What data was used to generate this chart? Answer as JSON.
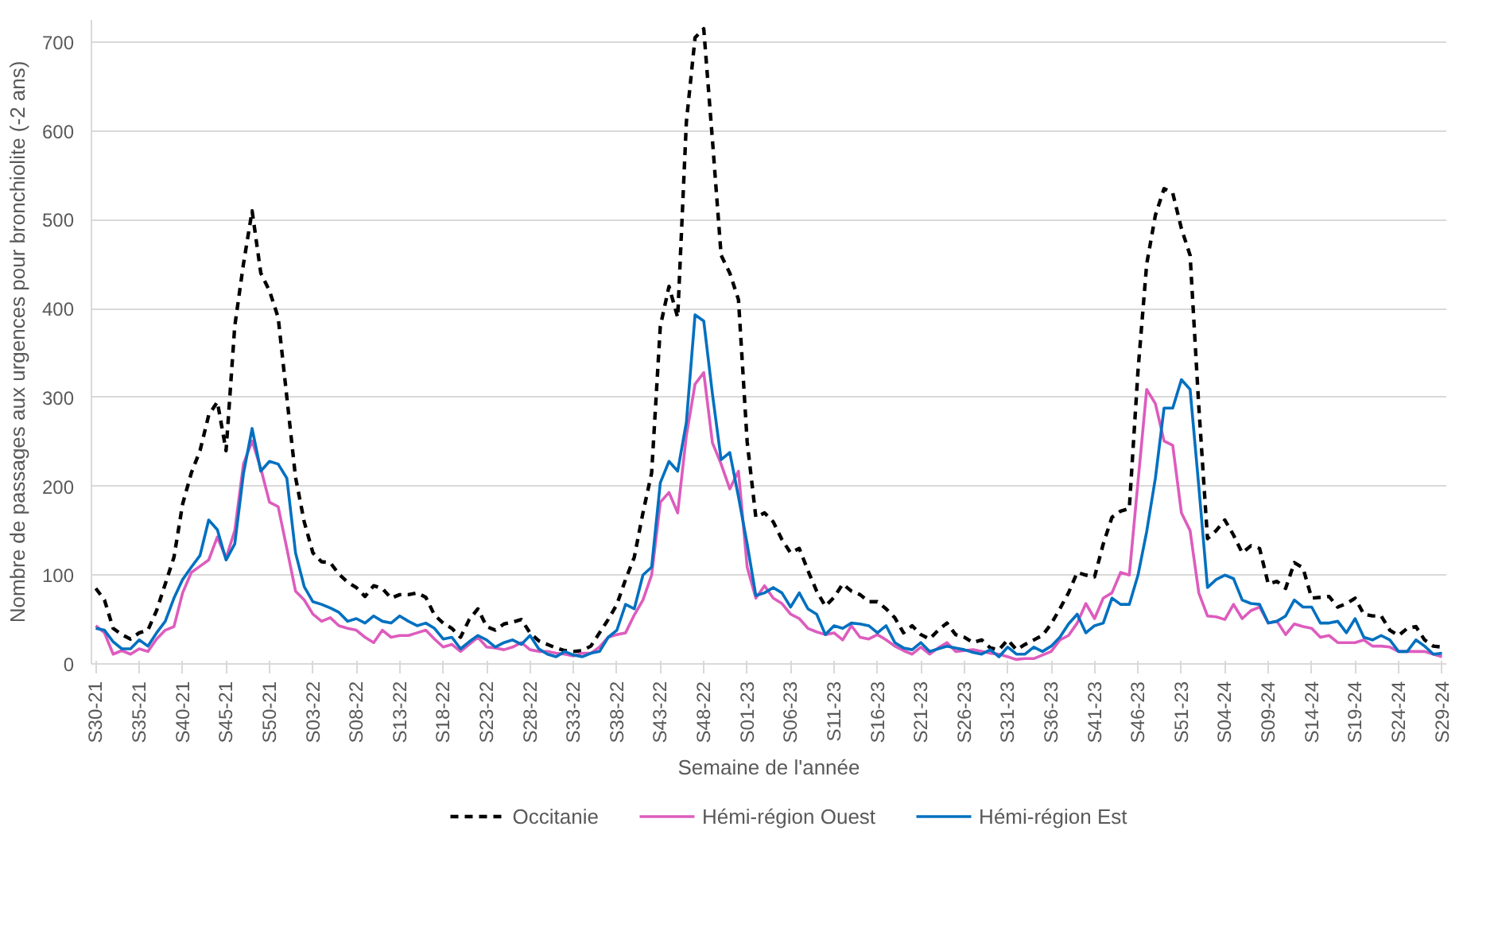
{
  "chart_data": {
    "type": "line",
    "xlabel": "Semaine de l'année",
    "ylabel": "Nombre de passages aux urgences pour bronchiolite (-2 ans)",
    "categories": [
      "S30-21",
      null,
      null,
      null,
      null,
      "S35-21",
      null,
      null,
      null,
      null,
      "S40-21",
      null,
      null,
      null,
      null,
      "S45-21",
      null,
      null,
      null,
      null,
      "S50-21",
      null,
      null,
      null,
      null,
      "S03-22",
      null,
      null,
      null,
      null,
      "S08-22",
      null,
      null,
      null,
      null,
      "S13-22",
      null,
      null,
      null,
      null,
      "S18-22",
      null,
      null,
      null,
      null,
      "S23-22",
      null,
      null,
      null,
      null,
      "S28-22",
      null,
      null,
      null,
      null,
      "S33-22",
      null,
      null,
      null,
      null,
      "S38-22",
      null,
      null,
      null,
      null,
      "S43-22",
      null,
      null,
      null,
      null,
      "S48-22",
      null,
      null,
      null,
      null,
      "S01-23",
      null,
      null,
      null,
      null,
      "S06-23",
      null,
      null,
      null,
      null,
      "S11-23",
      null,
      null,
      null,
      null,
      "S16-23",
      null,
      null,
      null,
      null,
      "S21-23",
      null,
      null,
      null,
      null,
      "S26-23",
      null,
      null,
      null,
      null,
      "S31-23",
      null,
      null,
      null,
      null,
      "S36-23",
      null,
      null,
      null,
      null,
      "S41-23",
      null,
      null,
      null,
      null,
      "S46-23",
      null,
      null,
      null,
      null,
      "S51-23",
      null,
      null,
      null,
      null,
      "S04-24",
      null,
      null,
      null,
      null,
      "S09-24",
      null,
      null,
      null,
      null,
      "S14-24",
      null,
      null,
      null,
      null,
      "S19-24",
      null,
      null,
      null,
      null,
      "S24-24",
      null,
      null,
      null,
      null,
      "S29-24"
    ],
    "series": [
      {
        "name": "Occitanie",
        "color": "#000000",
        "line_style": "dashed",
        "values": [
          85,
          72,
          40,
          33,
          28,
          35,
          38,
          60,
          90,
          120,
          180,
          215,
          240,
          280,
          295,
          240,
          380,
          450,
          510,
          440,
          420,
          390,
          300,
          210,
          160,
          125,
          115,
          114,
          101,
          92,
          86,
          76,
          88,
          85,
          74,
          78,
          78,
          80,
          75,
          55,
          46,
          40,
          30,
          50,
          62,
          42,
          38,
          45,
          47,
          50,
          35,
          26,
          22,
          18,
          15,
          14,
          15,
          20,
          35,
          50,
          67,
          95,
          120,
          170,
          215,
          380,
          425,
          390,
          610,
          705,
          715,
          590,
          460,
          440,
          410,
          250,
          165,
          170,
          160,
          140,
          125,
          130,
          105,
          82,
          65,
          75,
          90,
          82,
          78,
          70,
          70,
          62,
          52,
          35,
          43,
          33,
          28,
          38,
          46,
          33,
          30,
          24,
          27,
          18,
          16,
          27,
          16,
          22,
          27,
          32,
          45,
          62,
          80,
          103,
          100,
          98,
          135,
          165,
          172,
          175,
          330,
          450,
          505,
          535,
          530,
          490,
          460,
          290,
          141,
          150,
          162,
          145,
          125,
          133,
          130,
          90,
          93,
          85,
          114,
          108,
          74,
          75,
          76,
          64,
          68,
          74,
          56,
          54,
          54,
          38,
          32,
          40,
          42,
          27,
          20,
          19
        ]
      },
      {
        "name": "Hémi-région Ouest",
        "color": "#dd5cbd",
        "line_style": "solid",
        "values": [
          43,
          35,
          11,
          15,
          11,
          17,
          14,
          28,
          38,
          42,
          80,
          103,
          110,
          117,
          143,
          119,
          150,
          225,
          251,
          220,
          182,
          177,
          130,
          82,
          72,
          56,
          48,
          52,
          43,
          40,
          38,
          30,
          24,
          38,
          30,
          32,
          32,
          35,
          38,
          28,
          19,
          22,
          14,
          22,
          30,
          19,
          18,
          16,
          19,
          24,
          16,
          14,
          14,
          12,
          11,
          9,
          12,
          12,
          19,
          30,
          33,
          35,
          55,
          72,
          100,
          182,
          193,
          170,
          257,
          315,
          328,
          249,
          225,
          197,
          217,
          109,
          74,
          88,
          74,
          68,
          56,
          51,
          40,
          36,
          33,
          35,
          27,
          43,
          30,
          28,
          33,
          27,
          20,
          15,
          11,
          19,
          11,
          18,
          24,
          14,
          15,
          16,
          14,
          12,
          11,
          8,
          5,
          6,
          6,
          10,
          14,
          27,
          32,
          46,
          68,
          51,
          74,
          80,
          103,
          100,
          205,
          309,
          293,
          251,
          246,
          170,
          150,
          80,
          54,
          53,
          50,
          67,
          51,
          60,
          64,
          46,
          48,
          33,
          45,
          42,
          40,
          30,
          32,
          24,
          24,
          24,
          27,
          20,
          20,
          19,
          14,
          14,
          14,
          14,
          11,
          8
        ]
      },
      {
        "name": "Hémi-région Est",
        "color": "#0070c0",
        "line_style": "solid",
        "values": [
          40,
          38,
          25,
          17,
          17,
          27,
          20,
          35,
          48,
          74,
          95,
          109,
          122,
          162,
          151,
          117,
          135,
          214,
          265,
          217,
          228,
          225,
          209,
          125,
          87,
          70,
          67,
          63,
          58,
          48,
          51,
          46,
          54,
          48,
          46,
          54,
          48,
          43,
          46,
          40,
          28,
          30,
          17,
          25,
          32,
          27,
          19,
          24,
          27,
          22,
          32,
          17,
          11,
          8,
          14,
          10,
          8,
          12,
          14,
          30,
          38,
          67,
          62,
          100,
          109,
          204,
          228,
          217,
          272,
          393,
          386,
          304,
          230,
          238,
          188,
          135,
          77,
          80,
          86,
          80,
          64,
          80,
          62,
          56,
          33,
          43,
          40,
          46,
          45,
          43,
          35,
          43,
          24,
          18,
          16,
          24,
          14,
          17,
          20,
          18,
          16,
          13,
          11,
          16,
          8,
          19,
          11,
          11,
          19,
          14,
          20,
          30,
          45,
          56,
          35,
          43,
          46,
          74,
          67,
          67,
          100,
          149,
          209,
          288,
          288,
          320,
          309,
          200,
          86,
          95,
          100,
          96,
          72,
          68,
          67,
          46,
          48,
          54,
          72,
          64,
          64,
          46,
          46,
          48,
          35,
          51,
          30,
          27,
          32,
          27,
          14,
          14,
          27,
          20,
          11,
          12
        ]
      }
    ],
    "ylim": [
      0,
      725
    ],
    "yticks": [
      0,
      100,
      200,
      300,
      400,
      500,
      600,
      700
    ],
    "grid": "y",
    "legend": "bottom"
  }
}
